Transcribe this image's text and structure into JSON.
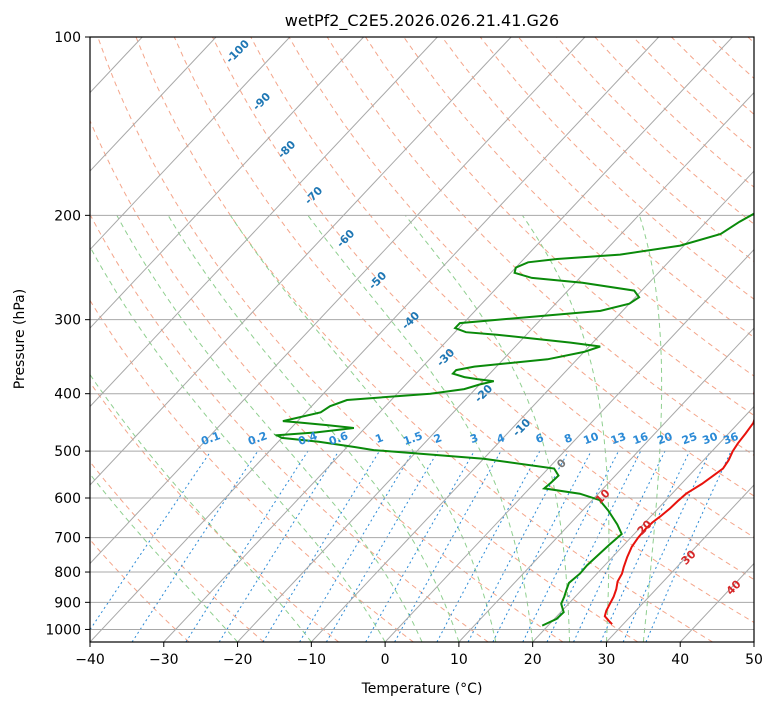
{
  "chart_data": {
    "type": "line",
    "title": "wetPf2_C2E5.2026.026.21.41.G26",
    "xlabel": "Temperature (°C)",
    "ylabel": "Pressure (hPa)",
    "xlim": [
      -40,
      50
    ],
    "ylim": [
      1050,
      100
    ],
    "y_scale": "log",
    "grid": true,
    "x_ticks": [
      -40,
      -30,
      -20,
      -10,
      0,
      10,
      20,
      30,
      40,
      50
    ],
    "y_ticks": [
      100,
      200,
      300,
      400,
      500,
      600,
      700,
      800,
      900,
      1000
    ],
    "series": [
      {
        "role": "temperature",
        "color": "#e8120c",
        "points": [
          [
            28.5,
            980
          ],
          [
            27.5,
            965
          ],
          [
            26.5,
            950
          ],
          [
            26.0,
            930
          ],
          [
            25.6,
            905
          ],
          [
            25.2,
            880
          ],
          [
            24.6,
            855
          ],
          [
            23.8,
            830
          ],
          [
            23.4,
            805
          ],
          [
            22.8,
            785
          ],
          [
            22.0,
            755
          ],
          [
            21.3,
            725
          ],
          [
            21.0,
            700
          ],
          [
            20.9,
            680
          ],
          [
            21.0,
            660
          ],
          [
            21.3,
            645
          ],
          [
            21.6,
            625
          ],
          [
            21.7,
            608
          ],
          [
            21.9,
            590
          ],
          [
            22.8,
            568
          ],
          [
            23.3,
            550
          ],
          [
            23.7,
            535
          ],
          [
            23.4,
            518
          ],
          [
            22.8,
            500
          ],
          [
            22.5,
            485
          ],
          [
            22.3,
            467
          ],
          [
            22.0,
            448
          ],
          [
            21.1,
            430
          ],
          [
            20.3,
            420
          ],
          [
            18.4,
            400
          ],
          [
            17.1,
            383
          ],
          [
            16.8,
            370
          ],
          [
            16.5,
            358
          ],
          [
            15.5,
            345
          ],
          [
            14.8,
            333
          ],
          [
            14.3,
            318
          ],
          [
            14.1,
            305
          ],
          [
            13.0,
            292
          ],
          [
            12.5,
            283
          ],
          [
            11.7,
            270
          ],
          [
            11.2,
            258
          ],
          [
            10.5,
            245
          ],
          [
            9.5,
            235
          ],
          [
            8.0,
            220
          ],
          [
            6.5,
            205
          ],
          [
            5.0,
            190
          ],
          [
            3.5,
            175
          ],
          [
            1.8,
            162
          ],
          [
            0.4,
            150
          ],
          [
            -0.6,
            140
          ],
          [
            -1.2,
            130
          ],
          [
            -1.6,
            120
          ],
          [
            -2.0,
            112
          ],
          [
            -2.4,
            106
          ],
          [
            -2.6,
            100
          ]
        ]
      },
      {
        "role": "dewpoint",
        "color": "#0a8a0a",
        "points": [
          [
            19.2,
            985
          ],
          [
            20.3,
            960
          ],
          [
            20.4,
            935
          ],
          [
            19.0,
            905
          ],
          [
            18.5,
            880
          ],
          [
            18.0,
            860
          ],
          [
            17.4,
            835
          ],
          [
            17.7,
            805
          ],
          [
            17.6,
            780
          ],
          [
            17.8,
            750
          ],
          [
            18.0,
            720
          ],
          [
            18.3,
            690
          ],
          [
            16.5,
            665
          ],
          [
            13.5,
            630
          ],
          [
            11.0,
            605
          ],
          [
            7.5,
            590
          ],
          [
            2.0,
            578
          ],
          [
            2.2,
            565
          ],
          [
            2.3,
            550
          ],
          [
            0.8,
            535
          ],
          [
            -10.0,
            515
          ],
          [
            -26.0,
            498
          ],
          [
            -29.0,
            492
          ],
          [
            -34.5,
            482
          ],
          [
            -40.0,
            475
          ],
          [
            -41.0,
            470
          ],
          [
            -36.0,
            465
          ],
          [
            -31.5,
            457
          ],
          [
            -35.5,
            452
          ],
          [
            -40.0,
            447
          ],
          [
            -42.0,
            445
          ],
          [
            -38.0,
            430
          ],
          [
            -37.5,
            420
          ],
          [
            -36.0,
            410
          ],
          [
            -25.5,
            400
          ],
          [
            -21.5,
            393
          ],
          [
            -20.0,
            386
          ],
          [
            -18.5,
            381
          ],
          [
            -21.0,
            378
          ],
          [
            -23.0,
            375
          ],
          [
            -25.0,
            370
          ],
          [
            -25.0,
            365
          ],
          [
            -23.0,
            360
          ],
          [
            -14.0,
            350
          ],
          [
            -10.0,
            340
          ],
          [
            -8.5,
            333
          ],
          [
            -13.0,
            328
          ],
          [
            -24.0,
            318
          ],
          [
            -28.5,
            315
          ],
          [
            -30.5,
            310
          ],
          [
            -30.5,
            304
          ],
          [
            -22.0,
            297
          ],
          [
            -13.0,
            290
          ],
          [
            -10.0,
            282
          ],
          [
            -9.5,
            275
          ],
          [
            -11.0,
            268
          ],
          [
            -19.0,
            260
          ],
          [
            -26.5,
            255
          ],
          [
            -29.5,
            250
          ],
          [
            -30.0,
            245
          ],
          [
            -29.0,
            240
          ],
          [
            -25.5,
            237
          ],
          [
            -17.5,
            233
          ],
          [
            -10.5,
            225
          ],
          [
            -6.5,
            215
          ],
          [
            -5.5,
            205
          ],
          [
            -4.0,
            195
          ],
          [
            -2.0,
            185
          ],
          [
            -0.5,
            175
          ],
          [
            0.3,
            165
          ],
          [
            -0.4,
            160
          ],
          [
            -0.8,
            148
          ],
          [
            -0.8,
            138
          ],
          [
            -0.7,
            128
          ],
          [
            -0.5,
            118
          ],
          [
            -0.2,
            108
          ],
          [
            0.0,
            100
          ]
        ]
      }
    ],
    "dry_adiabat_labels": [
      -100,
      -90,
      -80,
      -70,
      -60,
      -50,
      -40,
      -30,
      -20,
      -10,
      0,
      10,
      20,
      30,
      40
    ],
    "mixing_ratio_labels": [
      "0.1",
      "0.2",
      "0.4",
      "0.6",
      "1",
      "1.5",
      "2",
      "3",
      "4",
      "6",
      "8",
      "10",
      "13",
      "16",
      "20",
      "25",
      "30",
      "36"
    ]
  }
}
